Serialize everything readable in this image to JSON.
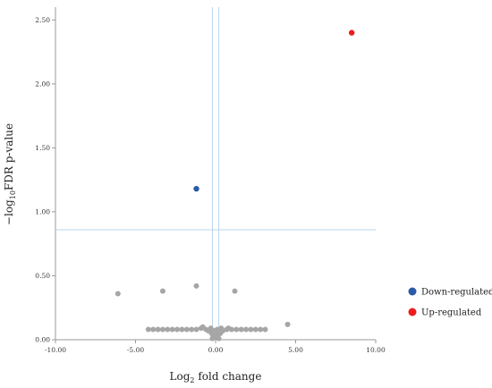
{
  "chart_data": {
    "type": "scatter",
    "xlabel": {
      "base": "Log",
      "sub": "2",
      "rest": " fold change"
    },
    "ylabel": {
      "pre": "−log",
      "sub": "10",
      "rest": "FDR p-value"
    },
    "xlim": [
      -10,
      10
    ],
    "ylim": [
      0,
      2.6
    ],
    "x_ticks": [
      -10,
      -5,
      0,
      5,
      10
    ],
    "x_tick_labels": [
      "-10.00",
      "-5.00",
      "0.00",
      "5.00",
      "10.00"
    ],
    "y_ticks": [
      0,
      0.5,
      1.0,
      1.5,
      2.0,
      2.5
    ],
    "y_tick_labels": [
      "0.00",
      "0.50",
      "1.00",
      "1.50",
      "2.00",
      "2.50"
    ],
    "threshold_lines": {
      "x": [
        -0.2,
        0.2
      ],
      "y": 0.86
    },
    "grid": false,
    "legend_position": "right",
    "colors": {
      "down": "#2b5aa8",
      "up": "#ee1c1c",
      "ns": "#a6a6a6",
      "threshold": "#b9d4ea"
    },
    "series": [
      {
        "name": "Down-regulated",
        "key": "down",
        "points": [
          {
            "x": -1.2,
            "y": 1.18
          }
        ]
      },
      {
        "name": "Up-regulated",
        "key": "up",
        "points": [
          {
            "x": 8.5,
            "y": 2.4
          }
        ]
      },
      {
        "key": "ns",
        "points": [
          {
            "x": -6.1,
            "y": 0.36
          },
          {
            "x": -3.3,
            "y": 0.38
          },
          {
            "x": -1.2,
            "y": 0.42
          },
          {
            "x": 1.2,
            "y": 0.38
          },
          {
            "x": 4.5,
            "y": 0.12
          },
          {
            "x": -4.2,
            "y": 0.08
          },
          {
            "x": -3.9,
            "y": 0.08
          },
          {
            "x": -3.6,
            "y": 0.08
          },
          {
            "x": -3.3,
            "y": 0.08
          },
          {
            "x": -3.0,
            "y": 0.08
          },
          {
            "x": -2.7,
            "y": 0.08
          },
          {
            "x": -2.4,
            "y": 0.08
          },
          {
            "x": -2.1,
            "y": 0.08
          },
          {
            "x": -1.8,
            "y": 0.08
          },
          {
            "x": -1.5,
            "y": 0.08
          },
          {
            "x": -1.2,
            "y": 0.08
          },
          {
            "x": -0.9,
            "y": 0.09
          },
          {
            "x": -0.6,
            "y": 0.08
          },
          {
            "x": -0.3,
            "y": 0.08
          },
          {
            "x": -0.1,
            "y": 0.07
          },
          {
            "x": 0.1,
            "y": 0.08
          },
          {
            "x": 0.4,
            "y": 0.08
          },
          {
            "x": 0.7,
            "y": 0.08
          },
          {
            "x": 1.0,
            "y": 0.08
          },
          {
            "x": 1.3,
            "y": 0.08
          },
          {
            "x": 1.6,
            "y": 0.08
          },
          {
            "x": 1.9,
            "y": 0.08
          },
          {
            "x": 2.2,
            "y": 0.08
          },
          {
            "x": 2.5,
            "y": 0.08
          },
          {
            "x": 2.8,
            "y": 0.08
          },
          {
            "x": 3.1,
            "y": 0.08
          },
          {
            "x": -0.25,
            "y": 0.05
          },
          {
            "x": -0.15,
            "y": 0.03
          },
          {
            "x": -0.05,
            "y": 0.02
          },
          {
            "x": 0.05,
            "y": 0.03
          },
          {
            "x": 0.15,
            "y": 0.04
          },
          {
            "x": 0.3,
            "y": 0.05
          },
          {
            "x": -0.3,
            "y": 0.09
          },
          {
            "x": 0.35,
            "y": 0.09
          },
          {
            "x": -0.8,
            "y": 0.1
          },
          {
            "x": 0.8,
            "y": 0.09
          },
          {
            "x": 0.0,
            "y": 0.06
          },
          {
            "x": 0.2,
            "y": 0.01
          },
          {
            "x": -0.2,
            "y": 0.01
          },
          {
            "x": 0.45,
            "y": 0.07
          },
          {
            "x": -0.45,
            "y": 0.07
          }
        ]
      }
    ]
  }
}
